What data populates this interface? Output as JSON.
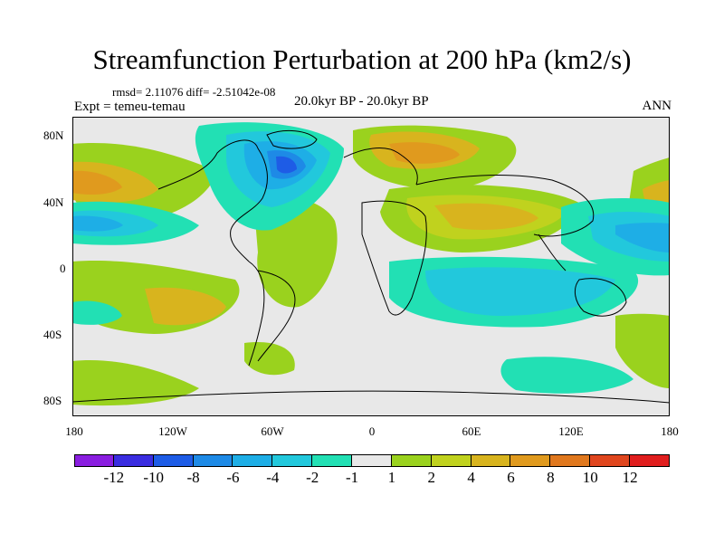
{
  "title": "Streamfunction Perturbation at 200 hPa (km2/s)",
  "stats_text": "rmsd= 2.11076 diff= -2.51042e-08",
  "left_label": "Expt = temeu-temau",
  "center_label": "20.0kyr BP - 20.0kyr BP",
  "right_label": "ANN",
  "y_ticks": [
    "80N",
    "40N",
    "0",
    "40S",
    "80S"
  ],
  "x_ticks": [
    "180",
    "120W",
    "60W",
    "0",
    "60E",
    "120E",
    "180"
  ],
  "colorbar": {
    "labels": [
      "-12",
      "-10",
      "-8",
      "-6",
      "-4",
      "-2",
      "-1",
      "1",
      "2",
      "4",
      "6",
      "8",
      "10",
      "12"
    ],
    "colors": [
      "#8a1ee0",
      "#3a2de0",
      "#1e5ce6",
      "#1e8ae6",
      "#1eaee6",
      "#22c8dc",
      "#22e0b4",
      "#e8e8e8",
      "#9ad21e",
      "#c0d21e",
      "#d8b41e",
      "#e09a1e",
      "#e0781e",
      "#e0461e",
      "#e01e1e"
    ]
  },
  "colors": {
    "background": "#e8e8e8",
    "neg1": "#22e0b4",
    "neg2": "#22c8dc",
    "neg3": "#1eaee6",
    "neg4": "#1e8ae6",
    "neg5": "#1e5ce6",
    "pos1": "#9ad21e",
    "pos2": "#c0d21e",
    "pos3": "#d8b41e",
    "pos4": "#e09a1e"
  }
}
